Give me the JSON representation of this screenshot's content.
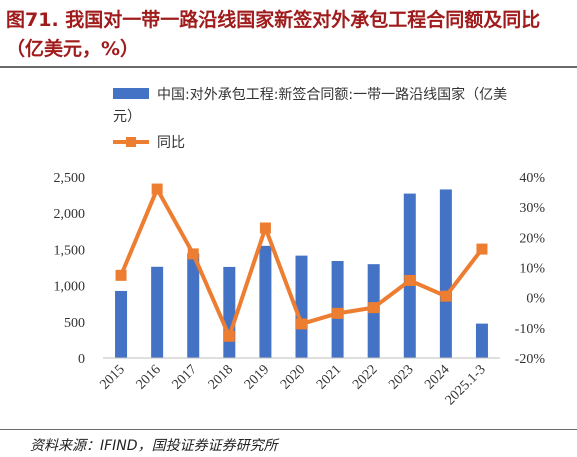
{
  "header": {
    "title": "图71. 我国对一带一路沿线国家新签对外承包工程合同额及同比（亿美元，%）"
  },
  "footer": {
    "source": "资料来源：IFIND，国投证券证券研究所"
  },
  "chart_data": {
    "type": "bar",
    "categories": [
      "2015",
      "2016",
      "2017",
      "2018",
      "2019",
      "2020",
      "2021",
      "2022",
      "2023",
      "2024",
      "2025.1-3"
    ],
    "series": [
      {
        "name": "中国:对外承包工程:新签合同额:一带一路沿线国家（亿美元）",
        "type": "bar",
        "axis": "left",
        "color": "#4472c4",
        "values": [
          926,
          1260,
          1443,
          1258,
          1549,
          1414,
          1340,
          1296,
          2271,
          2328,
          475
        ]
      },
      {
        "name": "同比",
        "type": "line",
        "axis": "right",
        "color": "#ed7d31",
        "values": [
          7.4,
          36.0,
          14.5,
          -12.8,
          23.1,
          -8.7,
          -5.2,
          -3.3,
          5.7,
          0.5,
          16.1
        ]
      }
    ],
    "left_axis": {
      "min": 0,
      "max": 2500,
      "ticks": [
        "0",
        "500",
        "1,000",
        "1,500",
        "2,000",
        "2,500"
      ]
    },
    "right_axis": {
      "min": -20,
      "max": 40,
      "ticks": [
        "-20%",
        "-10%",
        "0%",
        "10%",
        "20%",
        "30%",
        "40%"
      ]
    },
    "legend_position": "top",
    "grid": false
  }
}
